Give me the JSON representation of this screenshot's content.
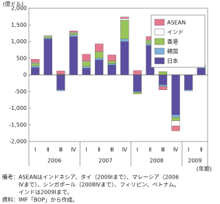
{
  "chart_data": {
    "type": "bar",
    "stacked": true,
    "y_label": "(億ドル)",
    "x_label": "(年期)",
    "categories": [
      "Ⅰ",
      "Ⅱ",
      "Ⅲ",
      "Ⅳ",
      "Ⅰ",
      "Ⅱ",
      "Ⅲ",
      "Ⅳ",
      "Ⅰ",
      "Ⅱ",
      "Ⅲ",
      "Ⅳ",
      "Ⅰ",
      "Ⅱ"
    ],
    "years": [
      "2006",
      "2007",
      "2008",
      "2009"
    ],
    "series": [
      {
        "name": "日本",
        "color": "#5a4fa0",
        "values": [
          220,
          1080,
          -450,
          1150,
          200,
          450,
          300,
          1000,
          -500,
          880,
          -300,
          -1200,
          -450,
          200
        ]
      },
      {
        "name": "韓国",
        "color": "#7fb2de",
        "values": [
          50,
          30,
          -30,
          50,
          50,
          50,
          40,
          80,
          -20,
          50,
          -50,
          -80,
          -30,
          50
        ]
      },
      {
        "name": "香港",
        "color": "#98c45a",
        "values": [
          80,
          50,
          20,
          60,
          150,
          200,
          80,
          560,
          -50,
          100,
          100,
          -100,
          0,
          20
        ]
      },
      {
        "name": "インド",
        "color": "#ffffff",
        "values": [
          20,
          20,
          0,
          20,
          20,
          0,
          0,
          50,
          0,
          20,
          0,
          -150,
          0,
          10
        ]
      },
      {
        "name": "ASEAN",
        "color": "#e57a8f",
        "values": [
          100,
          0,
          100,
          40,
          200,
          230,
          180,
          50,
          130,
          100,
          -100,
          -150,
          0,
          20
        ]
      }
    ],
    "ylim": [
      -2000,
      2000
    ],
    "yticks": [
      {
        "value": -2000,
        "label": "-2,000"
      },
      {
        "value": -1500,
        "label": "-1,500"
      },
      {
        "value": -1000,
        "label": "-1,000"
      },
      -500,
      0,
      500,
      {
        "value": 1000,
        "label": "1,000"
      },
      {
        "value": 1500,
        "label": "1,500"
      },
      {
        "value": 2000,
        "label": "2,000"
      }
    ],
    "legend": "upper right",
    "notes": [
      "備考：ASEANはインドネシア、タイ（2009Ⅰまで）、マレーシア（2006",
      "Ⅳまで）、シンガポール（2008Ⅳまで）、フィリピン、ベトナム。",
      "インドは2009Ⅰまで。"
    ],
    "source": "資料：IMF「BOP」から作成。"
  }
}
